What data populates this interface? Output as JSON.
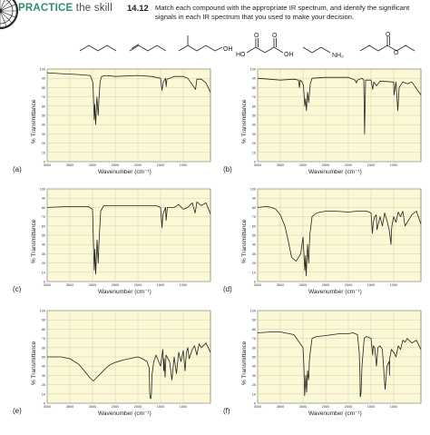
{
  "header": {
    "practice_word": "PRACTICE",
    "skill_word": "the skill",
    "problem_number": "14.12",
    "instructions": "Match each compound with the appropriate IR spectrum, and identify the significant signals in each IR spectrum that you used to make your decision."
  },
  "compounds": [
    {
      "id": "pentane",
      "labels": []
    },
    {
      "id": "1-pentene",
      "labels": []
    },
    {
      "id": "3-methyl-1-butanol",
      "labels": [
        "OH"
      ]
    },
    {
      "id": "malonic-acid",
      "labels": [
        "HO",
        "OH",
        "O",
        "O"
      ]
    },
    {
      "id": "propylamine",
      "labels": [
        "NH₂"
      ]
    },
    {
      "id": "ethyl-butanoate",
      "labels": [
        "O",
        "O"
      ]
    }
  ],
  "axis": {
    "ylabel": "% Transmittance",
    "xlabel": "Wavenumber (cm⁻¹)",
    "y_ticks": [
      "100",
      "90",
      "80",
      "70",
      "60",
      "50",
      "40",
      "30",
      "20",
      "10",
      "0"
    ],
    "x_ticks": [
      "4000",
      "3500",
      "3000",
      "2500",
      "2000",
      "1500",
      "1000"
    ],
    "xlim": [
      4000,
      400
    ],
    "ylim": [
      0,
      100
    ],
    "plot_bg": "#fbf8d6",
    "grid": true
  },
  "chart_data": [
    {
      "type": "line",
      "panel": "(a)",
      "x": [
        4000,
        3700,
        3300,
        3050,
        2990,
        2962,
        2950,
        2930,
        2905,
        2875,
        2860,
        2835,
        2800,
        2700,
        2500,
        2000,
        1700,
        1500,
        1467,
        1440,
        1390,
        1378,
        1360,
        1200,
        1000,
        900,
        730,
        725,
        700,
        600,
        500,
        400
      ],
      "y": [
        96,
        95,
        94,
        93,
        85,
        45,
        62,
        40,
        70,
        50,
        66,
        86,
        92,
        93,
        92,
        93,
        92,
        90,
        77,
        86,
        90,
        81,
        89,
        92,
        92,
        90,
        78,
        80,
        89,
        89,
        85,
        75
      ]
    },
    {
      "type": "line",
      "panel": "(b)",
      "x": [
        4000,
        3500,
        3200,
        3100,
        3079,
        3060,
        3020,
        2990,
        2960,
        2945,
        2925,
        2900,
        2875,
        2860,
        2840,
        2800,
        2500,
        2000,
        1850,
        1825,
        1800,
        1700,
        1660,
        1642,
        1620,
        1500,
        1465,
        1440,
        1378,
        1300,
        1000,
        995,
        950,
        910,
        880,
        800,
        700,
        600,
        400
      ],
      "y": [
        90,
        88,
        89,
        88,
        80,
        88,
        86,
        82,
        60,
        68,
        55,
        75,
        64,
        72,
        84,
        90,
        91,
        91,
        88,
        85,
        88,
        90,
        88,
        30,
        88,
        88,
        78,
        86,
        82,
        87,
        86,
        72,
        86,
        55,
        80,
        86,
        84,
        86,
        72
      ]
    },
    {
      "type": "line",
      "panel": "(c)",
      "x": [
        4000,
        3500,
        3100,
        3000,
        2962,
        2948,
        2930,
        2900,
        2873,
        2860,
        2820,
        2750,
        2500,
        2000,
        1600,
        1500,
        1467,
        1450,
        1390,
        1378,
        1350,
        1200,
        1100,
        1000,
        900,
        800,
        740,
        725,
        700,
        600,
        500,
        400
      ],
      "y": [
        80,
        81,
        81,
        78,
        12,
        35,
        8,
        45,
        20,
        40,
        76,
        82,
        82,
        82,
        82,
        80,
        58,
        72,
        80,
        66,
        80,
        80,
        83,
        78,
        80,
        85,
        74,
        78,
        86,
        82,
        85,
        73
      ]
    },
    {
      "type": "line",
      "panel": "(d)",
      "x": [
        4000,
        3800,
        3700,
        3600,
        3500,
        3400,
        3330,
        3250,
        3150,
        3050,
        3000,
        2960,
        2945,
        2930,
        2900,
        2875,
        2850,
        2800,
        2700,
        2600,
        2500,
        2300,
        2000,
        1800,
        1600,
        1500,
        1470,
        1450,
        1420,
        1385,
        1370,
        1300,
        1250,
        1200,
        1150,
        1100,
        1060,
        1050,
        1040,
        1000,
        950,
        900,
        850,
        800,
        750,
        600,
        500,
        400
      ],
      "y": [
        80,
        81,
        80,
        78,
        72,
        60,
        45,
        26,
        22,
        30,
        48,
        12,
        28,
        6,
        40,
        20,
        50,
        70,
        74,
        75,
        76,
        76,
        75,
        76,
        76,
        74,
        52,
        64,
        70,
        72,
        56,
        70,
        60,
        74,
        66,
        56,
        40,
        54,
        60,
        70,
        64,
        75,
        70,
        76,
        60,
        72,
        76,
        62
      ]
    },
    {
      "type": "line",
      "panel": "(e)",
      "x": [
        4000,
        3700,
        3500,
        3300,
        3200,
        3100,
        3050,
        3000,
        2980,
        2960,
        2900,
        2700,
        2600,
        2500,
        2300,
        2000,
        1900,
        1800,
        1750,
        1740,
        1730,
        1720,
        1710,
        1700,
        1690,
        1650,
        1600,
        1500,
        1450,
        1430,
        1420,
        1400,
        1380,
        1300,
        1250,
        1200,
        1150,
        1100,
        1050,
        1000,
        960,
        930,
        900,
        870,
        800,
        750,
        700,
        650,
        600,
        500,
        400
      ],
      "y": [
        50,
        50,
        48,
        42,
        36,
        30,
        27,
        25,
        24,
        25,
        28,
        38,
        42,
        44,
        47,
        50,
        48,
        45,
        38,
        12,
        6,
        5,
        6,
        12,
        30,
        45,
        52,
        40,
        58,
        35,
        48,
        28,
        52,
        45,
        25,
        50,
        32,
        55,
        45,
        57,
        35,
        55,
        60,
        48,
        58,
        62,
        52,
        64,
        60,
        65,
        55
      ]
    },
    {
      "type": "line",
      "panel": "(f)",
      "x": [
        4000,
        3700,
        3500,
        3400,
        3200,
        3000,
        2980,
        2965,
        2950,
        2940,
        2920,
        2900,
        2880,
        2870,
        2860,
        2840,
        2800,
        2700,
        2500,
        2200,
        2000,
        1900,
        1800,
        1760,
        1745,
        1738,
        1730,
        1720,
        1700,
        1650,
        1600,
        1500,
        1465,
        1450,
        1420,
        1380,
        1350,
        1300,
        1250,
        1190,
        1180,
        1150,
        1100,
        1095,
        1090,
        1050,
        1000,
        950,
        900,
        850,
        800,
        750,
        700,
        600,
        500,
        400
      ],
      "y": [
        76,
        77,
        77,
        76,
        74,
        60,
        40,
        8,
        20,
        30,
        12,
        35,
        25,
        30,
        45,
        55,
        70,
        72,
        73,
        75,
        75,
        76,
        74,
        55,
        30,
        7,
        8,
        12,
        40,
        70,
        72,
        70,
        52,
        62,
        60,
        40,
        60,
        62,
        58,
        15,
        20,
        40,
        45,
        30,
        48,
        58,
        55,
        50,
        62,
        58,
        68,
        66,
        70,
        65,
        68,
        58
      ]
    }
  ]
}
